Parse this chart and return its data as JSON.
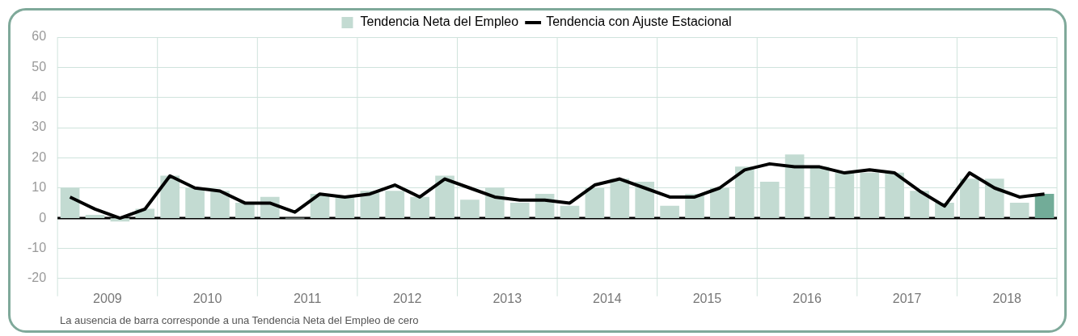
{
  "chart_data": {
    "type": "bar",
    "x": [
      2009.125,
      2009.375,
      2009.625,
      2009.875,
      2010.125,
      2010.375,
      2010.625,
      2010.875,
      2011.125,
      2011.375,
      2011.625,
      2011.875,
      2012.125,
      2012.375,
      2012.625,
      2012.875,
      2013.125,
      2013.375,
      2013.625,
      2013.875,
      2014.125,
      2014.375,
      2014.625,
      2014.875,
      2015.125,
      2015.375,
      2015.625,
      2015.875,
      2016.125,
      2016.375,
      2016.625,
      2016.875,
      2017.125,
      2017.375,
      2017.625,
      2017.875,
      2018.125,
      2018.375,
      2018.625,
      2018.875
    ],
    "series": [
      {
        "name": "Tendencia Neta del Empleo",
        "color": "#c3dbd2",
        "colors": [
          "#c3dbd2",
          "#c3dbd2",
          "#c3dbd2",
          "#c3dbd2",
          "#c3dbd2",
          "#c3dbd2",
          "#c3dbd2",
          "#c3dbd2",
          "#c3dbd2",
          "#c3dbd2",
          "#c3dbd2",
          "#c3dbd2",
          "#c3dbd2",
          "#c3dbd2",
          "#c3dbd2",
          "#c3dbd2",
          "#c3dbd2",
          "#c3dbd2",
          "#c3dbd2",
          "#c3dbd2",
          "#c3dbd2",
          "#c3dbd2",
          "#c3dbd2",
          "#c3dbd2",
          "#c3dbd2",
          "#c3dbd2",
          "#c3dbd2",
          "#c3dbd2",
          "#c3dbd2",
          "#c3dbd2",
          "#c3dbd2",
          "#c3dbd2",
          "#c3dbd2",
          "#c3dbd2",
          "#c3dbd2",
          "#c3dbd2",
          "#c3dbd2",
          "#c3dbd2",
          "#c3dbd2",
          "#72ac98"
        ],
        "values": [
          10,
          1,
          -1,
          3,
          14,
          10,
          9,
          5,
          7,
          0,
          8,
          7,
          9,
          9,
          7,
          14,
          6,
          10,
          5,
          8,
          4,
          10,
          13,
          12,
          4,
          8,
          10,
          17,
          12,
          21,
          17,
          15,
          15,
          15,
          9,
          5,
          13,
          13,
          5,
          8
        ]
      },
      {
        "name": "Tendencia con Ajuste Estacional",
        "type": "line",
        "color": "#000000",
        "values": [
          7,
          3,
          0,
          3,
          14,
          10,
          9,
          5,
          5,
          2,
          8,
          7,
          8,
          11,
          7,
          13,
          10,
          7,
          6,
          6,
          5,
          11,
          13,
          10,
          7,
          7,
          10,
          16,
          18,
          17,
          17,
          15,
          16,
          15,
          9,
          4,
          15,
          10,
          7,
          8
        ]
      }
    ],
    "xlim": [
      2009,
      2019
    ],
    "xticks": [
      {
        "value": 2009,
        "label": null
      },
      {
        "value": 2009.5,
        "label": "2009"
      },
      {
        "value": 2010,
        "label": null
      },
      {
        "value": 2010.5,
        "label": "2010"
      },
      {
        "value": 2011,
        "label": null
      },
      {
        "value": 2011.5,
        "label": "2011"
      },
      {
        "value": 2012,
        "label": null
      },
      {
        "value": 2012.5,
        "label": "2012"
      },
      {
        "value": 2013,
        "label": null
      },
      {
        "value": 2013.5,
        "label": "2013"
      },
      {
        "value": 2014,
        "label": null
      },
      {
        "value": 2014.5,
        "label": "2014"
      },
      {
        "value": 2015,
        "label": null
      },
      {
        "value": 2015.5,
        "label": "2015"
      },
      {
        "value": 2016,
        "label": null
      },
      {
        "value": 2016.5,
        "label": "2016"
      },
      {
        "value": 2017,
        "label": null
      },
      {
        "value": 2017.5,
        "label": "2017"
      },
      {
        "value": 2018,
        "label": null
      },
      {
        "value": 2018.5,
        "label": "2018"
      },
      {
        "value": 2019,
        "label": null
      }
    ],
    "ylim": [
      -20,
      60
    ],
    "yticks": [
      -20,
      -10,
      0,
      10,
      20,
      30,
      40,
      50,
      60
    ],
    "grid": true,
    "legend": "top",
    "marker": "none",
    "line_style": "solid",
    "ref_lines": [
      {
        "axis": "y",
        "value": 0,
        "color": "#000000"
      }
    ],
    "annotations": [
      "La ausencia de barra corresponde a una Tendencia Neta del Empleo de cero"
    ]
  }
}
